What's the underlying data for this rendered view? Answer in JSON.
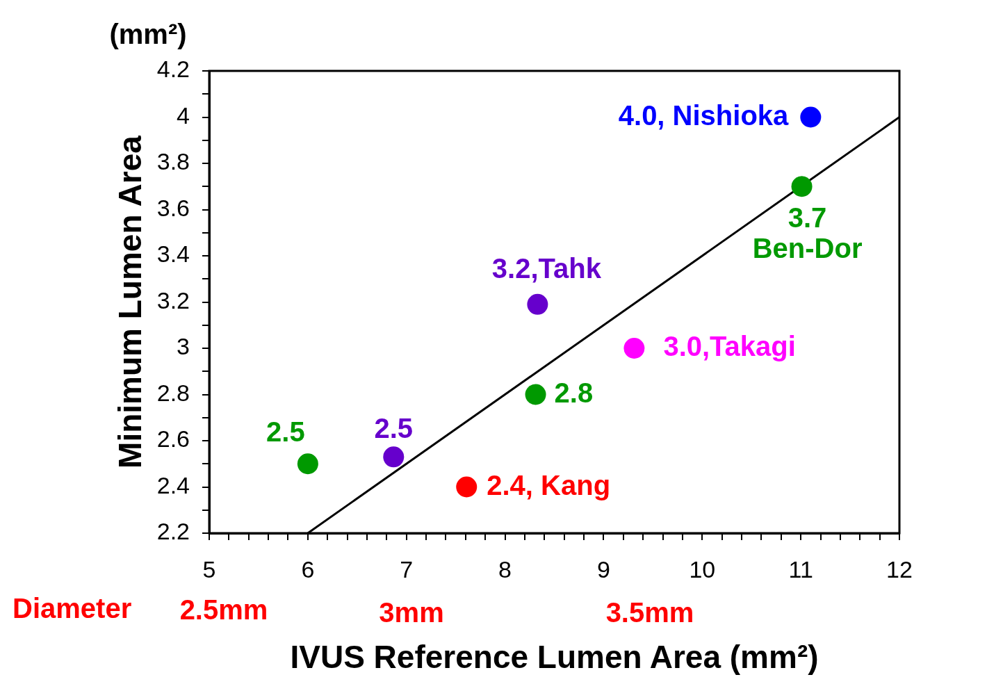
{
  "chart_data": {
    "type": "scatter",
    "xlabel": "IVUS Reference Lumen Area (mm²)",
    "ylabel": "Minimum Lumen Area",
    "series": [
      {
        "x": [
          6.0,
          6.87,
          7.61,
          8.31,
          8.33,
          9.31,
          11.01,
          11.1
        ],
        "values": [
          2.5,
          2.53,
          2.4,
          2.8,
          3.19,
          3.0,
          3.7,
          4.0
        ],
        "colors": [
          "#009900",
          "#6600cc",
          "#ff0000",
          "#009900",
          "#6600cc",
          "#ff00ff",
          "#009900",
          "#0000ff"
        ],
        "marker": "circle"
      },
      {
        "type": "line",
        "x": [
          6,
          12
        ],
        "values": [
          2.2,
          4.0
        ],
        "color": "#000000",
        "marker": "none",
        "line_style": "solid"
      }
    ],
    "xlim": [
      5,
      12
    ],
    "ylim": [
      2.2,
      4.2
    ],
    "xticks": [
      5,
      {
        "value": 5.2,
        "label": null
      },
      {
        "value": 5.4,
        "label": null
      },
      {
        "value": 5.6,
        "label": null
      },
      {
        "value": 5.8,
        "label": null
      },
      6,
      {
        "value": 6.2,
        "label": null
      },
      {
        "value": 6.4,
        "label": null
      },
      {
        "value": 6.6,
        "label": null
      },
      {
        "value": 6.8,
        "label": null
      },
      7,
      {
        "value": 7.2,
        "label": null
      },
      {
        "value": 7.4,
        "label": null
      },
      {
        "value": 7.6,
        "label": null
      },
      {
        "value": 7.8,
        "label": null
      },
      8,
      {
        "value": 8.2,
        "label": null
      },
      {
        "value": 8.4,
        "label": null
      },
      {
        "value": 8.6,
        "label": null
      },
      {
        "value": 8.8,
        "label": null
      },
      9,
      {
        "value": 9.2,
        "label": null
      },
      {
        "value": 9.4,
        "label": null
      },
      {
        "value": 9.6,
        "label": null
      },
      {
        "value": 9.8,
        "label": null
      },
      10,
      {
        "value": 10.2,
        "label": null
      },
      {
        "value": 10.4,
        "label": null
      },
      {
        "value": 10.6,
        "label": null
      },
      {
        "value": 10.8,
        "label": null
      },
      11,
      {
        "value": 11.2,
        "label": null
      },
      {
        "value": 11.4,
        "label": null
      },
      {
        "value": 11.6,
        "label": null
      },
      {
        "value": 11.8,
        "label": null
      },
      12
    ],
    "yticks": [
      2.2,
      {
        "value": 2.3,
        "label": null
      },
      2.4,
      {
        "value": 2.5,
        "label": null
      },
      2.6,
      {
        "value": 2.7,
        "label": null
      },
      2.8,
      {
        "value": 2.9,
        "label": null
      },
      3,
      {
        "value": 3.1,
        "label": null
      },
      3.2,
      {
        "value": 3.3,
        "label": null
      },
      3.4,
      {
        "value": 3.5,
        "label": null
      },
      3.6,
      {
        "value": 3.7,
        "label": null
      },
      3.8,
      {
        "value": 3.9,
        "label": null
      },
      4,
      {
        "value": 4.1,
        "label": null
      },
      4.2
    ],
    "annotations": [
      "(mm²)",
      "Diameter",
      "2.5mm",
      "3mm",
      "3.5mm",
      {
        "text": "2.5",
        "x": 6.0,
        "y": 2.5
      },
      {
        "text": "2.5",
        "x": 6.87,
        "y": 2.53
      },
      {
        "text": "2.4, Kang",
        "x": 7.61,
        "y": 2.4
      },
      {
        "text": "2.8",
        "x": 8.31,
        "y": 2.8
      },
      {
        "text": "3.2,Tahk",
        "x": 8.33,
        "y": 3.19
      },
      {
        "text": "3.0,Takagi",
        "x": 9.31,
        "y": 3.0
      },
      {
        "text": "3.7\nBen-Dor",
        "x": 11.01,
        "y": 3.7
      },
      {
        "text": "4.0, Nishioka",
        "x": 11.1,
        "y": 4.0
      }
    ]
  }
}
